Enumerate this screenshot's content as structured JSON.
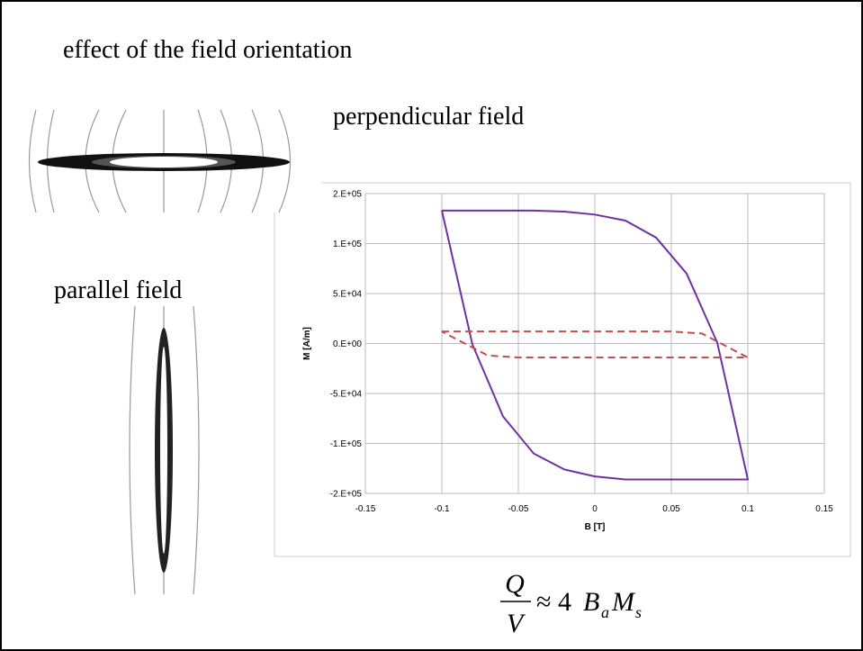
{
  "slide": {
    "title": "effect of the field orientation",
    "perpendicular_label": "perpendicular field",
    "parallel_label": "parallel field",
    "formula": {
      "numerator": "Q",
      "denominator": "V",
      "approx": "≈ 4",
      "b": "B",
      "b_sub": "a",
      "m": "M",
      "m_sub": "s"
    }
  },
  "chart_data": {
    "type": "line",
    "x_label": "B [T]",
    "y_label": "M [A/m]",
    "xlim": [
      -0.15,
      0.15
    ],
    "xticks": [
      -0.15,
      -0.1,
      -0.05,
      0,
      0.05,
      0.1,
      0.15
    ],
    "ylim": [
      -150000,
      150000
    ],
    "yticks": [
      {
        "value": -150000,
        "label": "-2.E+05"
      },
      {
        "value": -100000,
        "label": "-1.E+05"
      },
      {
        "value": -50000,
        "label": "-5.E+04"
      },
      {
        "value": 0,
        "label": "0.E+00"
      },
      {
        "value": 50000,
        "label": "5.E+04"
      },
      {
        "value": 100000,
        "label": "1.E+05"
      },
      {
        "value": 150000,
        "label": "2.E+05"
      }
    ],
    "grid": true,
    "series": [
      {
        "color": "#7030a0",
        "dash": false,
        "x": [
          -0.1,
          -0.04,
          -0.02,
          0,
          0.02,
          0.04,
          0.06,
          0.08,
          0.1,
          0.02,
          0,
          -0.02,
          -0.04,
          -0.06,
          -0.08,
          -0.1
        ],
        "values": [
          133000,
          133000,
          132000,
          129000,
          123000,
          106000,
          70000,
          1000,
          -136000,
          -136000,
          -133000,
          -126000,
          -110000,
          -73000,
          -1000,
          133000
        ]
      },
      {
        "color": "#c0504d",
        "dash": true,
        "x": [
          -0.1,
          -0.05,
          0.05,
          0.07,
          0.1,
          0.05,
          -0.05,
          -0.07,
          -0.1
        ],
        "values": [
          12000,
          12000,
          12000,
          10000,
          -14000,
          -14000,
          -14000,
          -12000,
          12000
        ]
      }
    ]
  }
}
